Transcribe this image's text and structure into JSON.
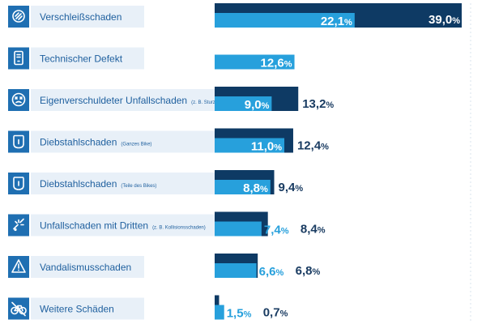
{
  "chart_data": {
    "type": "bar",
    "orientation": "horizontal",
    "categories": [
      {
        "label": "Verschleißschaden",
        "note": "",
        "icon": "wear-icon"
      },
      {
        "label": "Technischer Defekt",
        "note": "",
        "icon": "device-icon"
      },
      {
        "label": "Eigenverschuldeter Unfallschaden",
        "note": "(z. B. Sturz)",
        "icon": "dizzy-face-icon"
      },
      {
        "label": "Diebstahlschaden",
        "note": "(Ganzes Bike)",
        "icon": "lock-icon"
      },
      {
        "label": "Diebstahlschaden",
        "note": "(Teile des Bikes)",
        "icon": "lock-icon"
      },
      {
        "label": "Unfallschaden mit Dritten",
        "note": "(z. B. Kollisionsschaden)",
        "icon": "collision-icon"
      },
      {
        "label": "Vandalismusschaden",
        "note": "",
        "icon": "warning-icon"
      },
      {
        "label": "Weitere Schäden",
        "note": "",
        "icon": "bicycle-icon"
      }
    ],
    "series": [
      {
        "color": "#0e3a64",
        "values": [
          39.0,
          null,
          13.2,
          12.4,
          9.4,
          8.4,
          6.8,
          0.7
        ],
        "labels": [
          "39,0",
          "",
          "13,2",
          "12,4",
          "9,4",
          "8,4",
          "6,8",
          "0,7"
        ]
      },
      {
        "color": "#27a0dc",
        "values": [
          22.1,
          12.6,
          9.0,
          11.0,
          8.8,
          7.4,
          6.6,
          1.5
        ],
        "labels": [
          "22,1",
          "12,6",
          "9,0",
          "11,0",
          "8,8",
          "7,4",
          "6,6",
          "1,5"
        ]
      }
    ],
    "unit": "%",
    "xlim": [
      0,
      39.0
    ],
    "grid": false,
    "legend": "none"
  }
}
